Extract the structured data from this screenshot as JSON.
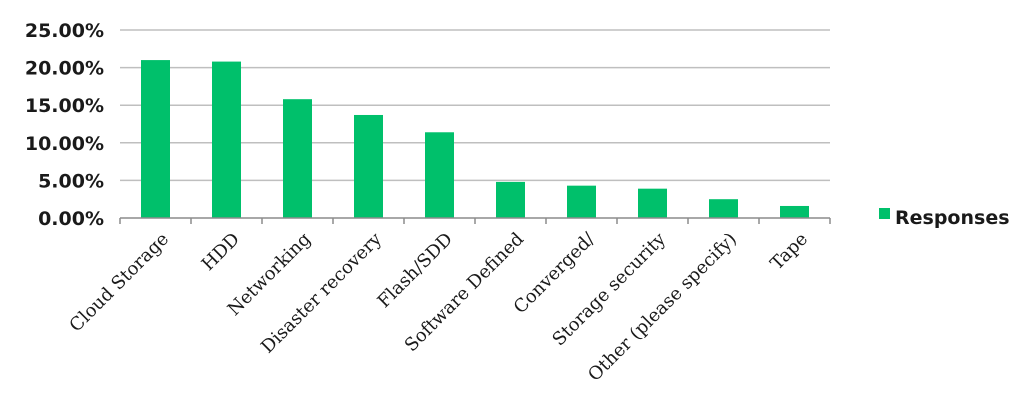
{
  "chart_data": {
    "type": "bar",
    "categories": [
      "Cloud Storage",
      "HDD",
      "Networking",
      "Disaster recovery",
      "Flash/SDD",
      "Software Defined",
      "Converged/",
      "Storage security",
      "Other (please specify)",
      "Tape"
    ],
    "series": [
      {
        "name": "Responses",
        "values": [
          21.0,
          20.8,
          15.8,
          13.7,
          11.4,
          4.8,
          4.3,
          3.9,
          2.5,
          1.6
        ],
        "color": "#00c06b"
      }
    ],
    "yticks": [
      "0.00%",
      "5.00%",
      "10.00%",
      "15.00%",
      "20.00%",
      "25.00%"
    ],
    "ylim": [
      0,
      25
    ],
    "grid": true,
    "legend": "right",
    "title": "",
    "xlabel": "",
    "ylabel": ""
  }
}
